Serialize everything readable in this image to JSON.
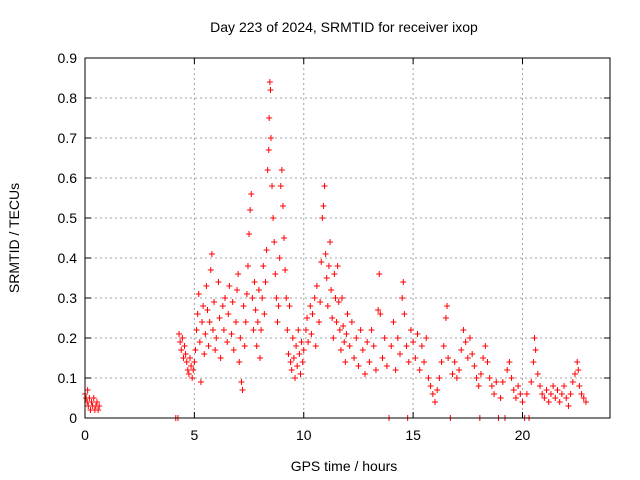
{
  "chart_data": {
    "type": "scatter",
    "title": "Day 223 of 2024, SRMTID for receiver ixop",
    "xlabel": "GPS time / hours",
    "ylabel": "SRMTID / TECUs",
    "xlim": [
      0,
      24
    ],
    "ylim": [
      0,
      0.9
    ],
    "xticks": [
      0,
      5,
      10,
      15,
      20
    ],
    "yticks": [
      0,
      0.1,
      0.2,
      0.3,
      0.4,
      0.5,
      0.6,
      0.7,
      0.8,
      0.9
    ],
    "ytick_labels": [
      "0",
      "0.1",
      "0.2",
      "0.3",
      "0.4",
      "0.5",
      "0.6",
      "0.7",
      "0.8",
      "0.9"
    ],
    "grid": true,
    "marker": "+",
    "marker_color": "#ff0000",
    "series": [
      {
        "name": "SRMTID",
        "points": [
          [
            0.0,
            0.06
          ],
          [
            0.05,
            0.05
          ],
          [
            0.1,
            0.04
          ],
          [
            0.12,
            0.07
          ],
          [
            0.15,
            0.03
          ],
          [
            0.2,
            0.05
          ],
          [
            0.25,
            0.02
          ],
          [
            0.3,
            0.04
          ],
          [
            0.35,
            0.03
          ],
          [
            0.4,
            0.05
          ],
          [
            0.45,
            0.02
          ],
          [
            0.5,
            0.03
          ],
          [
            0.55,
            0.04
          ],
          [
            0.6,
            0.02
          ],
          [
            0.65,
            0.03
          ],
          [
            4.15,
            0.0
          ],
          [
            4.25,
            0.0
          ],
          [
            4.3,
            0.21
          ],
          [
            4.35,
            0.19
          ],
          [
            4.4,
            0.17
          ],
          [
            4.45,
            0.2
          ],
          [
            4.5,
            0.15
          ],
          [
            4.55,
            0.18
          ],
          [
            4.6,
            0.16
          ],
          [
            4.65,
            0.14
          ],
          [
            4.7,
            0.12
          ],
          [
            4.75,
            0.11
          ],
          [
            4.8,
            0.15
          ],
          [
            4.85,
            0.13
          ],
          [
            4.9,
            0.1
          ],
          [
            4.95,
            0.12
          ],
          [
            5.0,
            0.14
          ],
          [
            5.05,
            0.17
          ],
          [
            5.1,
            0.22
          ],
          [
            5.15,
            0.26
          ],
          [
            5.2,
            0.31
          ],
          [
            5.25,
            0.19
          ],
          [
            5.3,
            0.09
          ],
          [
            5.35,
            0.24
          ],
          [
            5.4,
            0.28
          ],
          [
            5.45,
            0.16
          ],
          [
            5.5,
            0.21
          ],
          [
            5.55,
            0.33
          ],
          [
            5.6,
            0.27
          ],
          [
            5.65,
            0.18
          ],
          [
            5.7,
            0.24
          ],
          [
            5.75,
            0.37
          ],
          [
            5.8,
            0.41
          ],
          [
            5.85,
            0.22
          ],
          [
            5.9,
            0.29
          ],
          [
            5.95,
            0.17
          ],
          [
            6.0,
            0.2
          ],
          [
            6.1,
            0.34
          ],
          [
            6.15,
            0.25
          ],
          [
            6.2,
            0.15
          ],
          [
            6.3,
            0.28
          ],
          [
            6.35,
            0.22
          ],
          [
            6.4,
            0.3
          ],
          [
            6.5,
            0.19
          ],
          [
            6.55,
            0.26
          ],
          [
            6.6,
            0.33
          ],
          [
            6.7,
            0.21
          ],
          [
            6.75,
            0.29
          ],
          [
            6.8,
            0.17
          ],
          [
            6.9,
            0.24
          ],
          [
            6.95,
            0.32
          ],
          [
            7.0,
            0.36
          ],
          [
            7.05,
            0.14
          ],
          [
            7.1,
            0.2
          ],
          [
            7.15,
            0.09
          ],
          [
            7.2,
            0.07
          ],
          [
            7.25,
            0.28
          ],
          [
            7.3,
            0.18
          ],
          [
            7.35,
            0.24
          ],
          [
            7.4,
            0.31
          ],
          [
            7.45,
            0.38
          ],
          [
            7.5,
            0.46
          ],
          [
            7.55,
            0.52
          ],
          [
            7.6,
            0.56
          ],
          [
            7.65,
            0.3
          ],
          [
            7.7,
            0.22
          ],
          [
            7.75,
            0.34
          ],
          [
            7.8,
            0.27
          ],
          [
            7.85,
            0.18
          ],
          [
            7.9,
            0.24
          ],
          [
            7.95,
            0.32
          ],
          [
            8.0,
            0.15
          ],
          [
            8.05,
            0.22
          ],
          [
            8.1,
            0.3
          ],
          [
            8.15,
            0.38
          ],
          [
            8.2,
            0.26
          ],
          [
            8.25,
            0.34
          ],
          [
            8.3,
            0.42
          ],
          [
            8.35,
            0.62
          ],
          [
            8.4,
            0.67
          ],
          [
            8.42,
            0.75
          ],
          [
            8.45,
            0.84
          ],
          [
            8.48,
            0.82
          ],
          [
            8.5,
            0.7
          ],
          [
            8.55,
            0.58
          ],
          [
            8.6,
            0.5
          ],
          [
            8.65,
            0.44
          ],
          [
            8.7,
            0.36
          ],
          [
            8.75,
            0.3
          ],
          [
            8.8,
            0.24
          ],
          [
            8.85,
            0.28
          ],
          [
            8.9,
            0.4
          ],
          [
            8.95,
            0.58
          ],
          [
            9.0,
            0.62
          ],
          [
            9.05,
            0.53
          ],
          [
            9.1,
            0.45
          ],
          [
            9.15,
            0.37
          ],
          [
            9.2,
            0.3
          ],
          [
            9.25,
            0.22
          ],
          [
            9.3,
            0.16
          ],
          [
            9.35,
            0.28
          ],
          [
            9.4,
            0.14
          ],
          [
            9.45,
            0.12
          ],
          [
            9.5,
            0.2
          ],
          [
            9.55,
            0.15
          ],
          [
            9.6,
            0.1
          ],
          [
            9.65,
            0.18
          ],
          [
            9.7,
            0.13
          ],
          [
            9.75,
            0.22
          ],
          [
            9.8,
            0.16
          ],
          [
            9.85,
            0.11
          ],
          [
            9.9,
            0.19
          ],
          [
            9.95,
            0.14
          ],
          [
            10.0,
            0.17
          ],
          [
            10.1,
            0.22
          ],
          [
            10.15,
            0.25
          ],
          [
            10.2,
            0.19
          ],
          [
            10.3,
            0.28
          ],
          [
            10.35,
            0.21
          ],
          [
            10.4,
            0.26
          ],
          [
            10.5,
            0.3
          ],
          [
            10.55,
            0.18
          ],
          [
            10.6,
            0.33
          ],
          [
            10.7,
            0.24
          ],
          [
            10.75,
            0.29
          ],
          [
            10.8,
            0.39
          ],
          [
            10.85,
            0.5
          ],
          [
            10.9,
            0.53
          ],
          [
            10.95,
            0.58
          ],
          [
            11.0,
            0.41
          ],
          [
            11.05,
            0.35
          ],
          [
            11.1,
            0.28
          ],
          [
            11.15,
            0.38
          ],
          [
            11.2,
            0.44
          ],
          [
            11.25,
            0.32
          ],
          [
            11.3,
            0.25
          ],
          [
            11.35,
            0.2
          ],
          [
            11.4,
            0.36
          ],
          [
            11.45,
            0.3
          ],
          [
            11.5,
            0.24
          ],
          [
            11.55,
            0.38
          ],
          [
            11.6,
            0.29
          ],
          [
            11.65,
            0.22
          ],
          [
            11.7,
            0.17
          ],
          [
            11.75,
            0.3
          ],
          [
            11.8,
            0.23
          ],
          [
            11.85,
            0.19
          ],
          [
            11.9,
            0.14
          ],
          [
            11.95,
            0.21
          ],
          [
            12.0,
            0.26
          ],
          [
            12.1,
            0.18
          ],
          [
            12.2,
            0.24
          ],
          [
            12.3,
            0.15
          ],
          [
            12.4,
            0.2
          ],
          [
            12.5,
            0.13
          ],
          [
            12.6,
            0.22
          ],
          [
            12.7,
            0.17
          ],
          [
            12.8,
            0.11
          ],
          [
            12.9,
            0.19
          ],
          [
            13.0,
            0.14
          ],
          [
            13.1,
            0.22
          ],
          [
            13.2,
            0.18
          ],
          [
            13.3,
            0.12
          ],
          [
            13.4,
            0.27
          ],
          [
            13.45,
            0.36
          ],
          [
            13.5,
            0.26
          ],
          [
            13.6,
            0.15
          ],
          [
            13.7,
            0.2
          ],
          [
            13.8,
            0.13
          ],
          [
            13.9,
            0.0
          ],
          [
            14.0,
            0.18
          ],
          [
            14.1,
            0.24
          ],
          [
            14.2,
            0.12
          ],
          [
            14.3,
            0.2
          ],
          [
            14.4,
            0.16
          ],
          [
            14.5,
            0.3
          ],
          [
            14.55,
            0.34
          ],
          [
            14.6,
            0.26
          ],
          [
            14.7,
            0.18
          ],
          [
            14.75,
            0.0
          ],
          [
            14.8,
            0.14
          ],
          [
            14.9,
            0.22
          ],
          [
            15.0,
            0.19
          ],
          [
            15.1,
            0.15
          ],
          [
            15.2,
            0.21
          ],
          [
            15.3,
            0.12
          ],
          [
            15.4,
            0.18
          ],
          [
            15.5,
            0.14
          ],
          [
            15.6,
            0.2
          ],
          [
            15.7,
            0.1
          ],
          [
            15.8,
            0.08
          ],
          [
            15.9,
            0.06
          ],
          [
            16.0,
            0.04
          ],
          [
            16.1,
            0.07
          ],
          [
            16.2,
            0.1
          ],
          [
            16.3,
            0.14
          ],
          [
            16.4,
            0.18
          ],
          [
            16.5,
            0.25
          ],
          [
            16.55,
            0.28
          ],
          [
            16.6,
            0.15
          ],
          [
            16.7,
            0.0
          ],
          [
            16.8,
            0.11
          ],
          [
            16.9,
            0.14
          ],
          [
            17.0,
            0.1
          ],
          [
            17.1,
            0.12
          ],
          [
            17.2,
            0.17
          ],
          [
            17.3,
            0.22
          ],
          [
            17.4,
            0.19
          ],
          [
            17.5,
            0.15
          ],
          [
            17.6,
            0.2
          ],
          [
            17.7,
            0.16
          ],
          [
            17.8,
            0.13
          ],
          [
            17.9,
            0.1
          ],
          [
            18.0,
            0.08
          ],
          [
            18.05,
            0.0
          ],
          [
            18.1,
            0.11
          ],
          [
            18.2,
            0.15
          ],
          [
            18.3,
            0.18
          ],
          [
            18.4,
            0.14
          ],
          [
            18.5,
            0.1
          ],
          [
            18.6,
            0.08
          ],
          [
            18.7,
            0.06
          ],
          [
            18.8,
            0.09
          ],
          [
            18.9,
            0.0
          ],
          [
            19.0,
            0.05
          ],
          [
            19.1,
            0.09
          ],
          [
            19.2,
            0.0
          ],
          [
            19.3,
            0.12
          ],
          [
            19.4,
            0.14
          ],
          [
            19.5,
            0.1
          ],
          [
            19.6,
            0.07
          ],
          [
            19.7,
            0.05
          ],
          [
            19.8,
            0.08
          ],
          [
            19.9,
            0.06
          ],
          [
            20.0,
            0.04
          ],
          [
            20.1,
            0.0
          ],
          [
            20.2,
            0.06
          ],
          [
            20.3,
            0.0
          ],
          [
            20.4,
            0.09
          ],
          [
            20.5,
            0.14
          ],
          [
            20.55,
            0.2
          ],
          [
            20.6,
            0.17
          ],
          [
            20.7,
            0.11
          ],
          [
            20.8,
            0.08
          ],
          [
            20.9,
            0.06
          ],
          [
            21.0,
            0.05
          ],
          [
            21.1,
            0.07
          ],
          [
            21.2,
            0.04
          ],
          [
            21.3,
            0.06
          ],
          [
            21.4,
            0.08
          ],
          [
            21.5,
            0.05
          ],
          [
            21.6,
            0.07
          ],
          [
            21.7,
            0.04
          ],
          [
            21.8,
            0.06
          ],
          [
            21.9,
            0.08
          ],
          [
            22.0,
            0.05
          ],
          [
            22.1,
            0.03
          ],
          [
            22.2,
            0.06
          ],
          [
            22.3,
            0.09
          ],
          [
            22.4,
            0.11
          ],
          [
            22.5,
            0.14
          ],
          [
            22.55,
            0.12
          ],
          [
            22.6,
            0.08
          ],
          [
            22.7,
            0.06
          ],
          [
            22.8,
            0.05
          ],
          [
            22.9,
            0.04
          ]
        ]
      }
    ]
  }
}
